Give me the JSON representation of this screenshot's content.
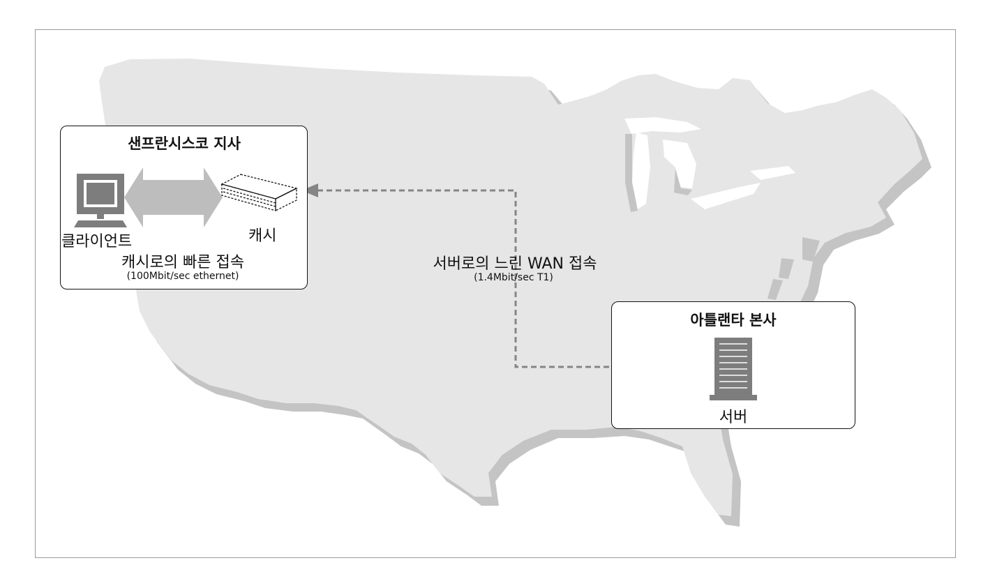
{
  "branch": {
    "title": "샌프란시스코 지사",
    "client_label": "클라이언트",
    "cache_label": "캐시",
    "fast_link_label": "캐시로의 빠른 접속",
    "fast_link_detail": "(100Mbit/sec ethernet)"
  },
  "wan": {
    "label": "서버로의 느린 WAN 접속",
    "detail": "(1.4Mbit/sec T1)"
  },
  "hq": {
    "title": "아틀랜타 본사",
    "server_label": "서버"
  },
  "colors": {
    "map_fill": "#e6e6e6",
    "map_shadow": "#c4c4c4",
    "icon_gray": "#7d7d7d",
    "arrow_gray": "#bdbdbd",
    "line_gray": "#858585"
  },
  "icons": [
    "computer-icon",
    "cache-device-icon",
    "server-icon",
    "bidirectional-arrow-icon"
  ]
}
